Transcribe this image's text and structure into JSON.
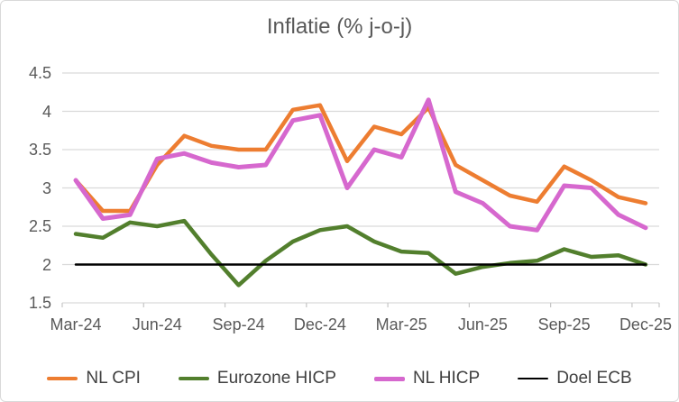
{
  "chart_data": {
    "type": "line",
    "title": "Inflatie (% j-o-j)",
    "categories": [
      "Mar-24",
      "Apr-24",
      "May-24",
      "Jun-24",
      "Jul-24",
      "Aug-24",
      "Sep-24",
      "Oct-24",
      "Nov-24",
      "Dec-24",
      "Jan-25",
      "Feb-25",
      "Mar-25",
      "Apr-25",
      "May-25",
      "Jun-25",
      "Jul-25",
      "Aug-25",
      "Sep-25",
      "Oct-25",
      "Nov-25",
      "Dec-25"
    ],
    "x_axis_tick_labels": [
      "Mar-24",
      "Jun-24",
      "Sep-24",
      "Dec-24",
      "Mar-25",
      "Jun-25",
      "Sep-25",
      "Dec-25"
    ],
    "x_axis_label_indices": [
      0,
      3,
      6,
      9,
      12,
      15,
      18,
      21
    ],
    "y_ticks": [
      1.5,
      2,
      2.5,
      3,
      3.5,
      4,
      4.5
    ],
    "ylim": [
      1.5,
      4.5
    ],
    "grid": "horizontal",
    "legend_position": "bottom",
    "colors": {
      "grid": "#D9D9D9",
      "tick": "#C6C6C6",
      "axis_text": "#595959",
      "title_text": "#595959",
      "legend_text": "#404040"
    },
    "series": [
      {
        "name": "NL CPI",
        "color": "#ED7D31",
        "values": [
          3.1,
          2.7,
          2.7,
          3.3,
          3.68,
          3.55,
          3.5,
          3.5,
          4.02,
          4.08,
          3.35,
          3.8,
          3.7,
          4.05,
          3.3,
          3.1,
          2.9,
          2.82,
          3.28,
          3.1,
          2.88,
          2.8
        ]
      },
      {
        "name": "Eurozone HICP",
        "color": "#527F2D",
        "values": [
          2.4,
          2.35,
          2.55,
          2.5,
          2.57,
          2.13,
          1.73,
          2.05,
          2.3,
          2.45,
          2.5,
          2.3,
          2.17,
          2.15,
          1.88,
          1.97,
          2.02,
          2.05,
          2.2,
          2.1,
          2.12,
          2.0
        ]
      },
      {
        "name": "NL HICP",
        "color": "#D668CE",
        "values": [
          3.1,
          2.6,
          2.65,
          3.38,
          3.45,
          3.33,
          3.27,
          3.3,
          3.88,
          3.95,
          3.0,
          3.5,
          3.4,
          4.15,
          2.95,
          2.8,
          2.5,
          2.45,
          3.03,
          3.0,
          2.65,
          2.48
        ]
      },
      {
        "name": "Doel ECB",
        "color": "#000000",
        "values": [
          2.0,
          2.0,
          2.0,
          2.0,
          2.0,
          2.0,
          2.0,
          2.0,
          2.0,
          2.0,
          2.0,
          2.0,
          2.0,
          2.0,
          2.0,
          2.0,
          2.0,
          2.0,
          2.0,
          2.0,
          2.0,
          2.0
        ]
      }
    ]
  }
}
